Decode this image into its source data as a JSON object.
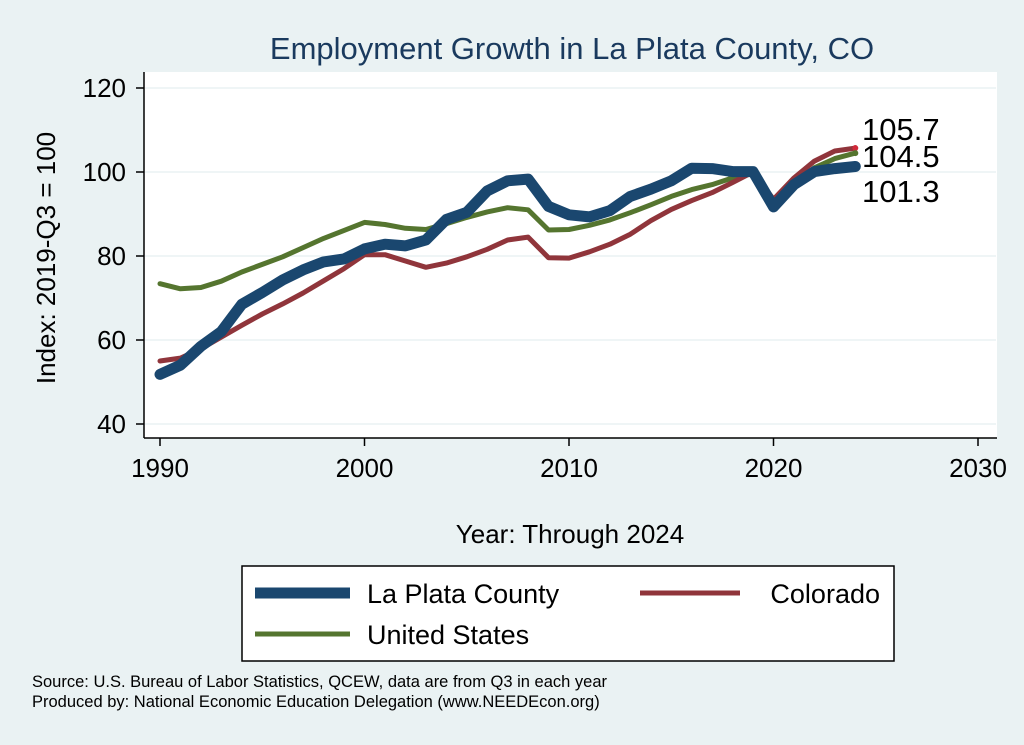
{
  "chart_data": {
    "type": "line",
    "title": "Employment Growth in La Plata County, CO",
    "xlabel": "Year: Through 2024",
    "ylabel": "Index: 2019-Q3 = 100",
    "xlim": [
      1990,
      2030
    ],
    "ylim": [
      40,
      120
    ],
    "xticks": [
      1990,
      2000,
      2010,
      2020,
      2030
    ],
    "yticks": [
      40,
      60,
      80,
      100,
      120
    ],
    "grid": true,
    "legend_position": "bottom",
    "x": [
      1990,
      1991,
      1992,
      1993,
      1994,
      1995,
      1996,
      1997,
      1998,
      1999,
      2000,
      2001,
      2002,
      2003,
      2004,
      2005,
      2006,
      2007,
      2008,
      2009,
      2010,
      2011,
      2012,
      2013,
      2014,
      2015,
      2016,
      2017,
      2018,
      2019,
      2020,
      2021,
      2022,
      2023,
      2024
    ],
    "series": [
      {
        "name": "La Plata  County",
        "color": "#1a476f",
        "values": [
          51.8,
          54,
          58.5,
          62,
          68.5,
          71.3,
          74.3,
          76.7,
          78.6,
          79.3,
          81.7,
          82.8,
          82.4,
          83.8,
          88.7,
          90.4,
          95.5,
          97.9,
          98.3,
          91.8,
          89.8,
          89.3,
          90.8,
          94.2,
          95.9,
          97.9,
          100.9,
          100.8,
          100.1,
          100.1,
          91.7,
          97,
          100.1,
          100.8,
          101.3
        ],
        "end_label": "101.3"
      },
      {
        "name": "Colorado",
        "color": "#90353b",
        "values": [
          55,
          55.7,
          57.9,
          60.7,
          63.5,
          66.2,
          68.6,
          71.2,
          74.1,
          77,
          80.3,
          80.3,
          78.8,
          77.3,
          78.3,
          79.8,
          81.6,
          83.8,
          84.5,
          79.6,
          79.5,
          81,
          82.8,
          85.2,
          88.4,
          91.1,
          93.2,
          95.1,
          97.5,
          100,
          93.5,
          98.6,
          102.6,
          105,
          105.7
        ],
        "end_label": "105.7"
      },
      {
        "name": "United States",
        "color": "#55752f",
        "values": [
          73.4,
          72.2,
          72.5,
          74,
          76.2,
          78,
          79.8,
          82,
          84.2,
          86.1,
          88,
          87.5,
          86.6,
          86.3,
          87.7,
          89.2,
          90.5,
          91.5,
          91,
          86.2,
          86.3,
          87.3,
          88.6,
          90.3,
          92.2,
          94.2,
          95.8,
          97,
          98.6,
          100,
          92.5,
          96.8,
          101,
          103.2,
          104.5
        ],
        "end_label": "104.5"
      }
    ]
  },
  "footnotes": {
    "source": "Source: U.S. Bureau of Labor Statistics, QCEW, data are from Q3 in each year",
    "produced_by": "Produced by: National Economic Education Delegation (www.NEEDEcon.org)"
  }
}
